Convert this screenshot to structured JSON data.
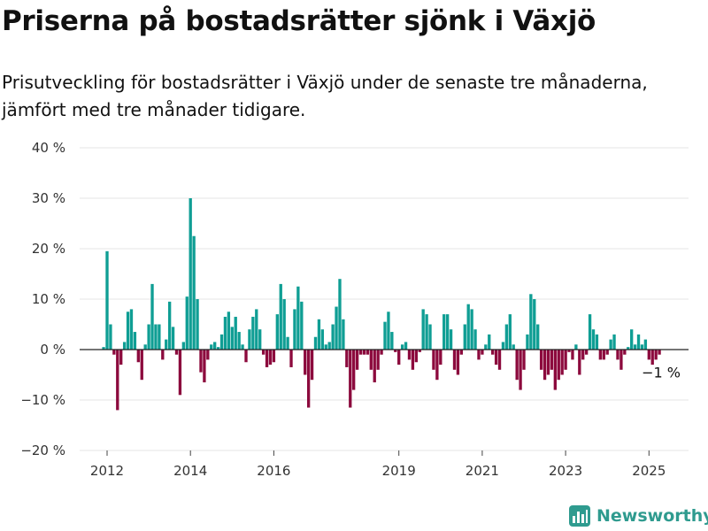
{
  "title": "Priserna på bostadsrätter sjönk i Växjö",
  "subtitle": "Prisutveckling för bostadsrätter i Växjö under de senaste tre månaderna, jämfört med tre månader tidigare.",
  "brand": {
    "name": "Newsworthy",
    "icon": "bar-chart-logo-icon",
    "color": "#2f9b8f"
  },
  "colors": {
    "positive": "#0f9e94",
    "negative": "#8c0a3d",
    "grid": "#e6e6e6",
    "baseline": "#222222"
  },
  "chart_data": {
    "type": "bar",
    "xlabel": "",
    "ylabel": "",
    "ylim": [
      -20,
      40
    ],
    "y_ticks": [
      {
        "value": 40,
        "label": "40 %"
      },
      {
        "value": 30,
        "label": "30 %"
      },
      {
        "value": 20,
        "label": "20 %"
      },
      {
        "value": 10,
        "label": "10 %"
      },
      {
        "value": 0,
        "label": "0 %"
      },
      {
        "value": -10,
        "label": "−10 %"
      },
      {
        "value": -20,
        "label": "−20 %"
      }
    ],
    "x_ticks": [
      {
        "year": 2012,
        "label": "2012"
      },
      {
        "year": 2014,
        "label": "2014"
      },
      {
        "year": 2016,
        "label": "2016"
      },
      {
        "year": 2019,
        "label": "2019"
      },
      {
        "year": 2021,
        "label": "2021"
      },
      {
        "year": 2023,
        "label": "2023"
      },
      {
        "year": 2025,
        "label": "2025"
      }
    ],
    "grid": true,
    "legend": "none",
    "last_value_label": "−1 %",
    "start_month": "2011-12",
    "values": [
      0.5,
      19.5,
      5,
      -1,
      -12,
      -3,
      1.5,
      7.5,
      8,
      3.5,
      -2.5,
      -6,
      1,
      5,
      13,
      5,
      5,
      -2,
      2,
      9.5,
      4.5,
      -1,
      -9,
      1.5,
      10.5,
      30,
      22.5,
      10,
      -4.5,
      -6.5,
      -2,
      1,
      1.5,
      0.5,
      3,
      6.5,
      7.5,
      4.5,
      6.5,
      3.5,
      1,
      -2.5,
      4,
      6.5,
      8,
      4,
      -1,
      -3.5,
      -3,
      -2.5,
      7,
      13,
      10,
      2.5,
      -3.5,
      8,
      12.5,
      9.5,
      -5,
      -11.5,
      -6,
      2.5,
      6,
      4,
      1,
      1.5,
      5,
      8.5,
      14,
      6,
      -3.5,
      -11.5,
      -8,
      -4,
      -1,
      -1,
      -1,
      -4,
      -6.5,
      -4,
      -1,
      5.5,
      7.5,
      3.5,
      -0.5,
      -3,
      1,
      1.5,
      -2,
      -4,
      -2.5,
      -0.5,
      8,
      7,
      5,
      -4,
      -6,
      -3,
      7,
      7,
      4,
      -4,
      -5,
      -1,
      5,
      9,
      8,
      4,
      -2,
      -1,
      1,
      3,
      -1,
      -3,
      -4,
      1.5,
      5,
      7,
      1,
      -6,
      -8,
      -4,
      3,
      11,
      10,
      5,
      -4,
      -6,
      -5,
      -4,
      -8,
      -6,
      -5,
      -4,
      -0.5,
      -2,
      1,
      -5,
      -2,
      -1,
      7,
      4,
      3,
      -2,
      -2,
      -1,
      2,
      3,
      -2,
      -4,
      -1,
      0.5,
      4,
      1,
      3,
      1,
      2,
      -2,
      -3,
      -2,
      -1
    ]
  }
}
